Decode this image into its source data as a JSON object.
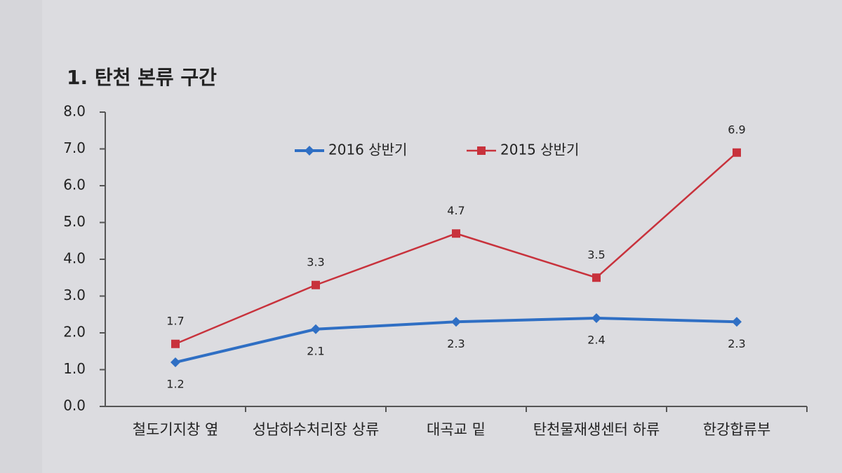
{
  "chart_data": {
    "type": "line",
    "title": "1. 탄천 본류 구간",
    "categories": [
      "철도기지창 옆",
      "성남하수처리장 상류",
      "대곡교 밑",
      "탄천물재생센터 하류",
      "한강합류부"
    ],
    "series": [
      {
        "name": "2016 상반기",
        "color": "#2f6fc4",
        "marker": "diamond",
        "values": [
          1.2,
          2.1,
          2.3,
          2.4,
          2.3
        ]
      },
      {
        "name": "2015 상반기",
        "color": "#c8323c",
        "marker": "square",
        "values": [
          1.7,
          3.3,
          4.7,
          3.5,
          6.9
        ]
      }
    ],
    "ylim": [
      0,
      8
    ],
    "yticks": [
      {
        "value": 0,
        "label": "0.0"
      },
      {
        "value": 1,
        "label": "1.0"
      },
      {
        "value": 2,
        "label": "2.0"
      },
      {
        "value": 3,
        "label": "3.0"
      },
      {
        "value": 4,
        "label": "4.0"
      },
      {
        "value": 5,
        "label": "5.0"
      },
      {
        "value": 6,
        "label": "6.0"
      },
      {
        "value": 7,
        "label": "7.0"
      },
      {
        "value": 8,
        "label": "8.0"
      }
    ],
    "grid": false
  }
}
